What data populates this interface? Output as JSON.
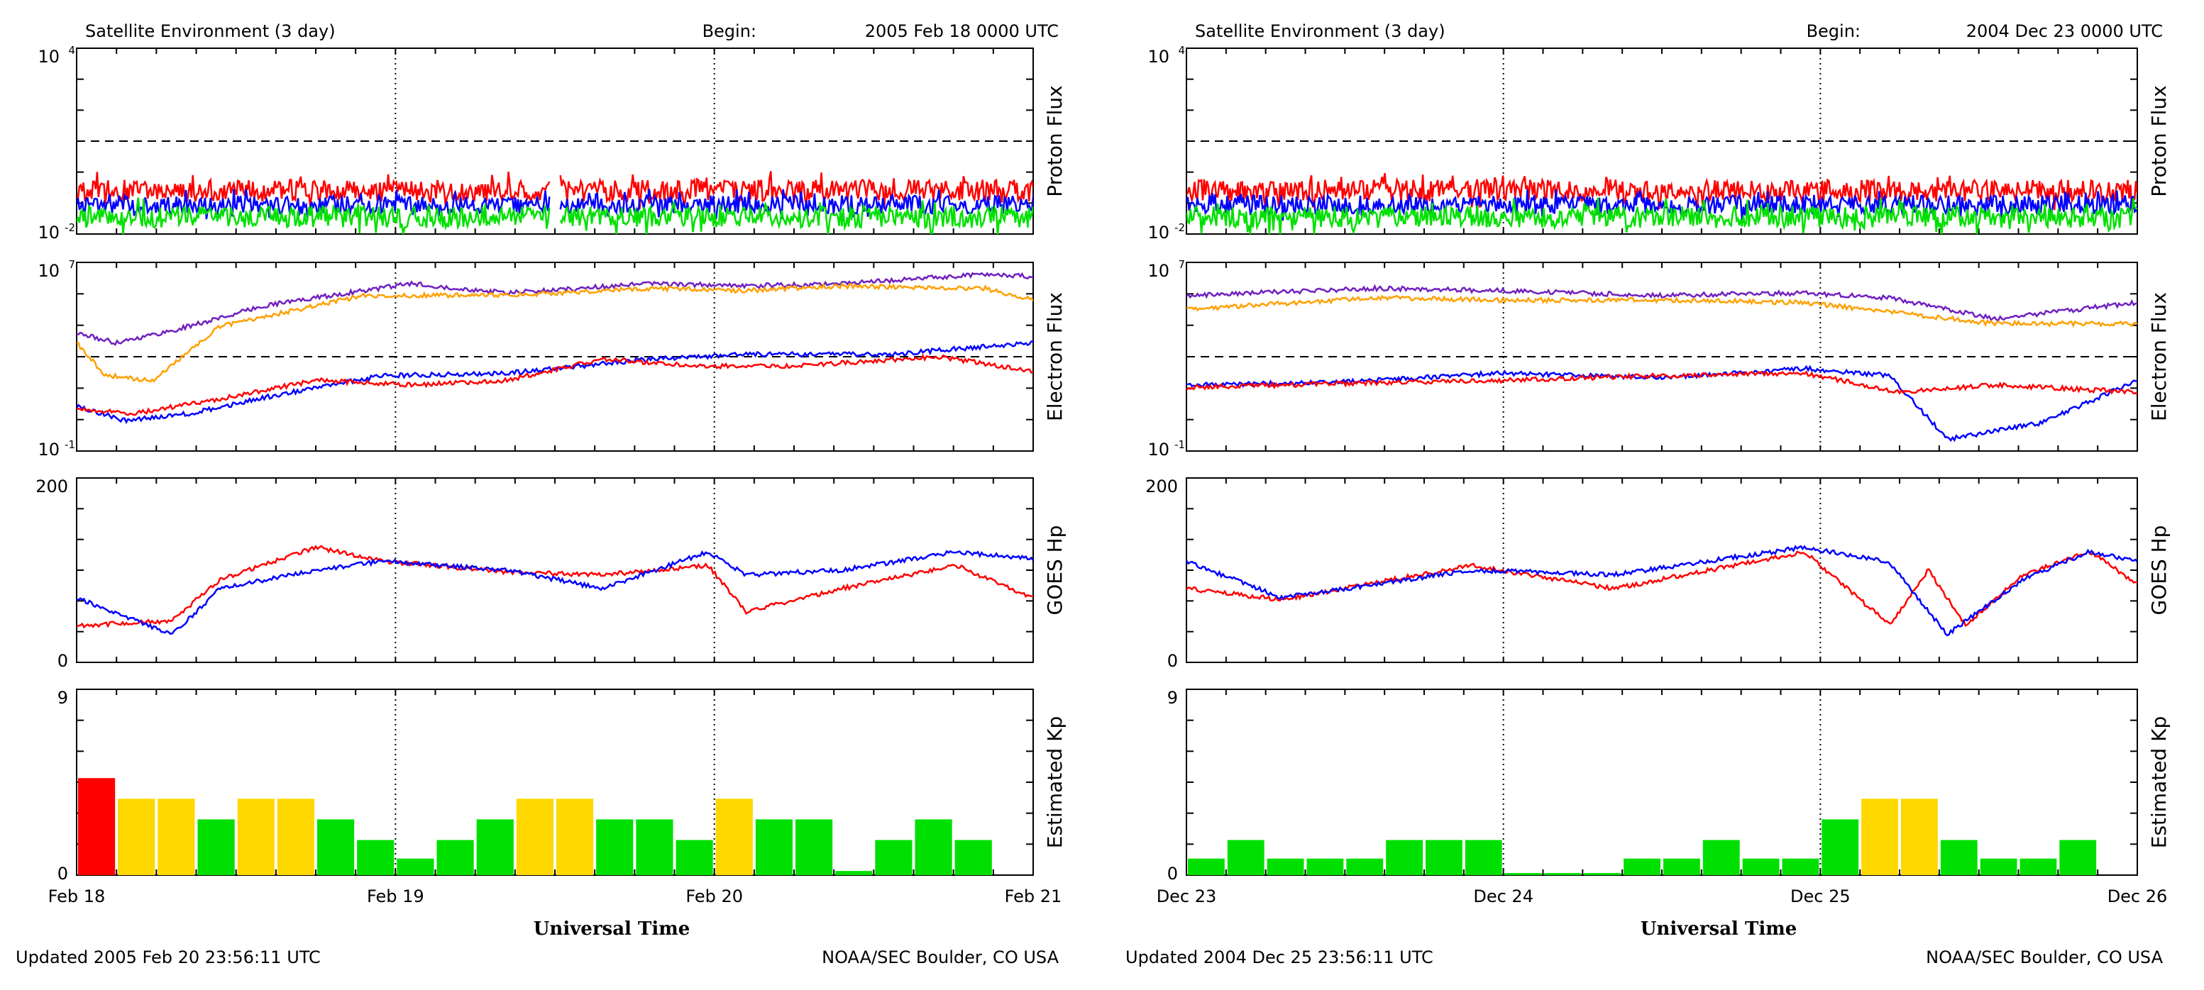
{
  "panels": [
    {
      "title": "Satellite Environment (3 day)",
      "begin_label": "Begin:",
      "begin_value": "2005 Feb 18 0000 UTC",
      "x_ticks": [
        "Feb 18",
        "Feb 19",
        "Feb 20",
        "Feb 21"
      ],
      "xlabel": "Universal Time",
      "updated": "Updated 2005 Feb 20 23:56:11 UTC",
      "credit": "NOAA/SEC Boulder, CO USA",
      "seed": 11,
      "charts": [
        {
          "name": "proton-flux",
          "type": "line",
          "ylabel": "Proton Flux",
          "y_ticks": [
            "10",
            "10"
          ],
          "y_exps": [
            "4",
            "-2"
          ],
          "ylim_log10": [
            -2,
            4
          ],
          "threshold_log10": 1,
          "series": [
            {
              "name": "p1",
              "color": "#ff0000",
              "level": -0.6,
              "noise": 0.35,
              "gap": [
                0.495,
                0.505
              ]
            },
            {
              "name": "p2",
              "color": "#0000ff",
              "level": -1.05,
              "noise": 0.3,
              "gap": [
                0.495,
                0.505
              ]
            },
            {
              "name": "p3",
              "color": "#00e000",
              "level": -1.45,
              "noise": 0.35,
              "gap": [
                0.495,
                0.505
              ]
            }
          ]
        },
        {
          "name": "electron-flux",
          "type": "line",
          "ylabel": "Electron Flux",
          "y_ticks": [
            "10",
            "10"
          ],
          "y_exps": [
            "7",
            "-1"
          ],
          "ylim_log10": [
            -1,
            7
          ],
          "threshold_log10": 3,
          "series": [
            {
              "name": "e-purple",
              "color": "#7020c0",
              "t": [
                0,
                0.04,
                0.1,
                0.2,
                0.35,
                0.45,
                0.6,
                0.7,
                0.8,
                0.95,
                1
              ],
              "v": [
                4,
                3.6,
                4.1,
                5.2,
                6.1,
                5.7,
                6.1,
                6,
                6.1,
                6.5,
                6.4
              ]
            },
            {
              "name": "e-orange",
              "color": "#ffa000",
              "t": [
                0,
                0.03,
                0.08,
                0.15,
                0.3,
                0.45,
                0.6,
                0.7,
                0.8,
                0.95,
                1
              ],
              "v": [
                3.6,
                2.2,
                2,
                4.3,
                5.6,
                5.6,
                5.9,
                5.8,
                6,
                5.9,
                5.4
              ]
            },
            {
              "name": "e-blue",
              "color": "#0000ff",
              "t": [
                0,
                0.05,
                0.12,
                0.2,
                0.32,
                0.45,
                0.6,
                0.7,
                0.85,
                1
              ],
              "v": [
                0.9,
                0.3,
                0.6,
                1.3,
                2.2,
                2.3,
                2.9,
                3.1,
                3.1,
                3.6
              ]
            },
            {
              "name": "e-red",
              "color": "#ff0000",
              "t": [
                0,
                0.06,
                0.15,
                0.25,
                0.35,
                0.45,
                0.55,
                0.65,
                0.75,
                0.9,
                1
              ],
              "v": [
                0.8,
                0.6,
                1.2,
                2,
                1.8,
                2,
                2.9,
                2.6,
                2.6,
                3,
                2.4
              ]
            }
          ]
        },
        {
          "name": "goes-hp",
          "type": "line",
          "ylabel": "GOES Hp",
          "y_ticks": [
            "200",
            "0"
          ],
          "ylim": [
            0,
            200
          ],
          "series": [
            {
              "name": "hp-red",
              "color": "#ff0000",
              "t": [
                0,
                0.1,
                0.15,
                0.25,
                0.32,
                0.45,
                0.55,
                0.66,
                0.7,
                0.8,
                0.92,
                1
              ],
              "v": [
                40,
                45,
                90,
                125,
                110,
                98,
                95,
                105,
                55,
                80,
                105,
                70
              ]
            },
            {
              "name": "hp-blue",
              "color": "#0000ff",
              "t": [
                0,
                0.1,
                0.15,
                0.25,
                0.32,
                0.45,
                0.55,
                0.66,
                0.7,
                0.8,
                0.92,
                1
              ],
              "v": [
                70,
                30,
                80,
                100,
                110,
                100,
                80,
                120,
                95,
                100,
                120,
                112
              ]
            }
          ]
        },
        {
          "name": "estimated-kp",
          "type": "bar",
          "ylabel": "Estimated Kp",
          "y_ticks": [
            "9",
            "0"
          ],
          "ylim": [
            0,
            9
          ],
          "values": [
            4.7,
            3.7,
            3.7,
            2.7,
            3.7,
            3.7,
            2.7,
            1.7,
            0.8,
            1.7,
            2.7,
            3.7,
            3.7,
            2.7,
            2.7,
            1.7,
            3.7,
            2.7,
            2.7,
            0.2,
            1.7,
            2.7,
            1.7,
            0
          ]
        }
      ]
    },
    {
      "title": "Satellite Environment (3 day)",
      "begin_label": "Begin:",
      "begin_value": "2004 Dec 23 0000 UTC",
      "x_ticks": [
        "Dec 23",
        "Dec 24",
        "Dec 25",
        "Dec 26"
      ],
      "xlabel": "Universal Time",
      "updated": "Updated 2004 Dec 25 23:56:11 UTC",
      "credit": "NOAA/SEC Boulder, CO USA",
      "seed": 29,
      "charts": [
        {
          "name": "proton-flux",
          "type": "line",
          "ylabel": "Proton Flux",
          "y_ticks": [
            "10",
            "10"
          ],
          "y_exps": [
            "4",
            "-2"
          ],
          "ylim_log10": [
            -2,
            4
          ],
          "threshold_log10": 1,
          "series": [
            {
              "name": "p1",
              "color": "#ff0000",
              "level": -0.6,
              "noise": 0.35
            },
            {
              "name": "p2",
              "color": "#0000ff",
              "level": -1.05,
              "noise": 0.3
            },
            {
              "name": "p3",
              "color": "#00e000",
              "level": -1.45,
              "noise": 0.35
            }
          ]
        },
        {
          "name": "electron-flux",
          "type": "line",
          "ylabel": "Electron Flux",
          "y_ticks": [
            "10",
            "10"
          ],
          "y_exps": [
            "7",
            "-1"
          ],
          "ylim_log10": [
            -1,
            7
          ],
          "threshold_log10": 3,
          "series": [
            {
              "name": "e-purple",
              "color": "#7020c0",
              "t": [
                0,
                0.2,
                0.33,
                0.5,
                0.65,
                0.74,
                0.85,
                1
              ],
              "v": [
                5.6,
                5.9,
                5.8,
                5.6,
                5.7,
                5.5,
                4.6,
                5.3
              ]
            },
            {
              "name": "e-orange",
              "color": "#ffa000",
              "t": [
                0,
                0.2,
                0.33,
                0.5,
                0.65,
                0.74,
                0.85,
                1
              ],
              "v": [
                5,
                5.5,
                5.4,
                5.4,
                5.3,
                4.9,
                4.4,
                4.4
              ]
            },
            {
              "name": "e-blue",
              "color": "#0000ff",
              "t": [
                0,
                0.15,
                0.33,
                0.5,
                0.65,
                0.74,
                0.8,
                0.9,
                1
              ],
              "v": [
                1.8,
                1.9,
                2.3,
                2.1,
                2.5,
                2.2,
                -0.5,
                0.2,
                2
              ]
            },
            {
              "name": "e-red",
              "color": "#ff0000",
              "t": [
                0,
                0.2,
                0.33,
                0.5,
                0.65,
                0.75,
                0.85,
                1
              ],
              "v": [
                1.7,
                1.9,
                2,
                2.2,
                2.3,
                1.5,
                1.8,
                1.5
              ]
            }
          ]
        },
        {
          "name": "goes-hp",
          "type": "line",
          "ylabel": "GOES Hp",
          "y_ticks": [
            "200",
            "0"
          ],
          "ylim": [
            0,
            200
          ],
          "series": [
            {
              "name": "hp-red",
              "color": "#ff0000",
              "t": [
                0,
                0.1,
                0.3,
                0.45,
                0.65,
                0.74,
                0.78,
                0.82,
                0.88,
                0.95,
                1
              ],
              "v": [
                80,
                68,
                105,
                80,
                120,
                40,
                100,
                40,
                95,
                120,
                85
              ]
            },
            {
              "name": "hp-blue",
              "color": "#0000ff",
              "t": [
                0,
                0.1,
                0.3,
                0.45,
                0.65,
                0.74,
                0.8,
                0.88,
                0.95,
                1
              ],
              "v": [
                110,
                70,
                100,
                95,
                125,
                108,
                30,
                90,
                120,
                110
              ]
            }
          ]
        },
        {
          "name": "estimated-kp",
          "type": "bar",
          "ylabel": "Estimated Kp",
          "y_ticks": [
            "9",
            "0"
          ],
          "ylim": [
            0,
            9
          ],
          "values": [
            0.8,
            1.7,
            0.8,
            0.8,
            0.8,
            1.7,
            1.7,
            1.7,
            0.1,
            0.1,
            0.1,
            0.8,
            0.8,
            1.7,
            0.8,
            0.8,
            2.7,
            3.7,
            3.7,
            1.7,
            0.8,
            0.8,
            1.7,
            0
          ]
        }
      ]
    }
  ],
  "chart_data": [
    {
      "type": "line",
      "title": "Satellite Environment (3 day) - Proton Flux",
      "begin": "2005 Feb 18 0000 UTC",
      "x_ticks": [
        "Feb 18",
        "Feb 19",
        "Feb 20",
        "Feb 21"
      ],
      "ylim_log10": [
        -2,
        4
      ],
      "series": [
        {
          "name": "red",
          "approx_log10": -0.6
        },
        {
          "name": "blue",
          "approx_log10": -1.05
        },
        {
          "name": "green",
          "approx_log10": -1.45
        }
      ]
    },
    {
      "type": "line",
      "title": "Satellite Environment (3 day) - Electron Flux",
      "begin": "2005 Feb 18 0000 UTC",
      "ylim_log10": [
        -1,
        7
      ]
    },
    {
      "type": "line",
      "title": "Satellite Environment (3 day) - GOES Hp",
      "begin": "2005 Feb 18 0000 UTC",
      "ylim": [
        0,
        200
      ]
    },
    {
      "type": "bar",
      "title": "Satellite Environment (3 day) - Estimated Kp",
      "begin": "2005 Feb 18 0000 UTC",
      "ylim": [
        0,
        9
      ],
      "bar_colors": {
        "kp<4": "#00e000",
        "kp=4": "#ffd800",
        "kp>=5": "#ff0000"
      }
    },
    {
      "type": "line",
      "title": "Satellite Environment (3 day) - Proton Flux",
      "begin": "2004 Dec 23 0000 UTC",
      "x_ticks": [
        "Dec 23",
        "Dec 24",
        "Dec 25",
        "Dec 26"
      ],
      "ylim_log10": [
        -2,
        4
      ]
    },
    {
      "type": "line",
      "title": "Satellite Environment (3 day) - Electron Flux",
      "begin": "2004 Dec 23 0000 UTC",
      "ylim_log10": [
        -1,
        7
      ]
    },
    {
      "type": "line",
      "title": "Satellite Environment (3 day) - GOES Hp",
      "begin": "2004 Dec 23 0000 UTC",
      "ylim": [
        0,
        200
      ]
    },
    {
      "type": "bar",
      "title": "Satellite Environment (3 day) - Estimated Kp",
      "begin": "2004 Dec 23 0000 UTC",
      "ylim": [
        0,
        9
      ]
    }
  ]
}
